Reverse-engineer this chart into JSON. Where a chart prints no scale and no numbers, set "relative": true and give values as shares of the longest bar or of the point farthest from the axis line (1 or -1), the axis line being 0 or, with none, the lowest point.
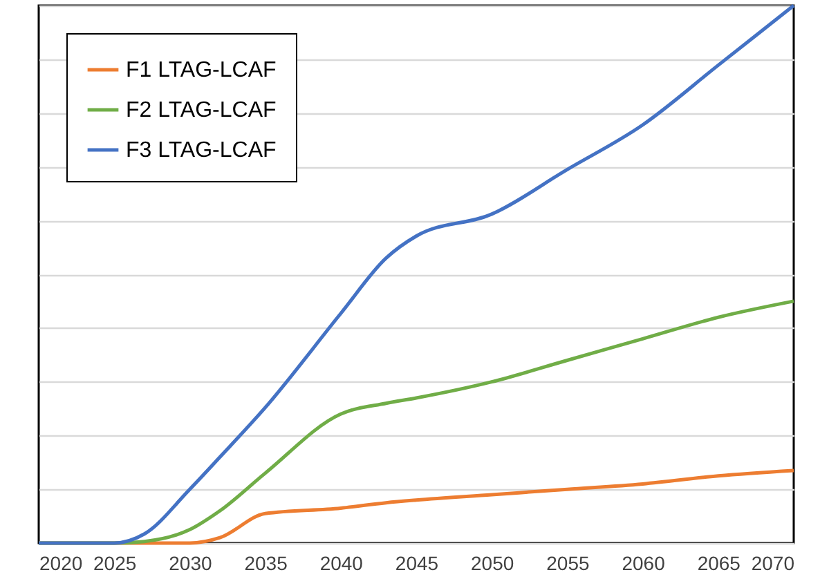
{
  "chart_data": {
    "type": "line",
    "relative": true,
    "x": [
      2020,
      2025,
      2027,
      2030,
      2032,
      2035,
      2040,
      2043,
      2045,
      2050,
      2055,
      2060,
      2065,
      2070
    ],
    "xlim": [
      2020,
      2070
    ],
    "xticks": [
      2020,
      2025,
      2030,
      2035,
      2040,
      2045,
      2050,
      2055,
      2060,
      2065,
      2070
    ],
    "grid": "y",
    "legend": "top left",
    "series": [
      {
        "name": "F1 LTAG-LCAF",
        "color": "#ed7d31",
        "values": [
          0,
          0,
          0,
          0,
          0.01,
          0.055,
          0.065,
          0.075,
          0.08,
          0.09,
          0.1,
          0.11,
          0.125,
          0.135
        ]
      },
      {
        "name": "F2 LTAG-LCAF",
        "color": "#70ad47",
        "values": [
          0,
          0,
          0.003,
          0.025,
          0.06,
          0.13,
          0.24,
          0.26,
          0.27,
          0.3,
          0.34,
          0.38,
          0.42,
          0.45
        ]
      },
      {
        "name": "F3 LTAG-LCAF",
        "color": "#4472c4",
        "values": [
          0,
          0,
          0.017,
          0.1,
          0.16,
          0.252,
          0.427,
          0.53,
          0.571,
          0.612,
          0.695,
          0.778,
          0.889,
          1
        ]
      }
    ]
  }
}
